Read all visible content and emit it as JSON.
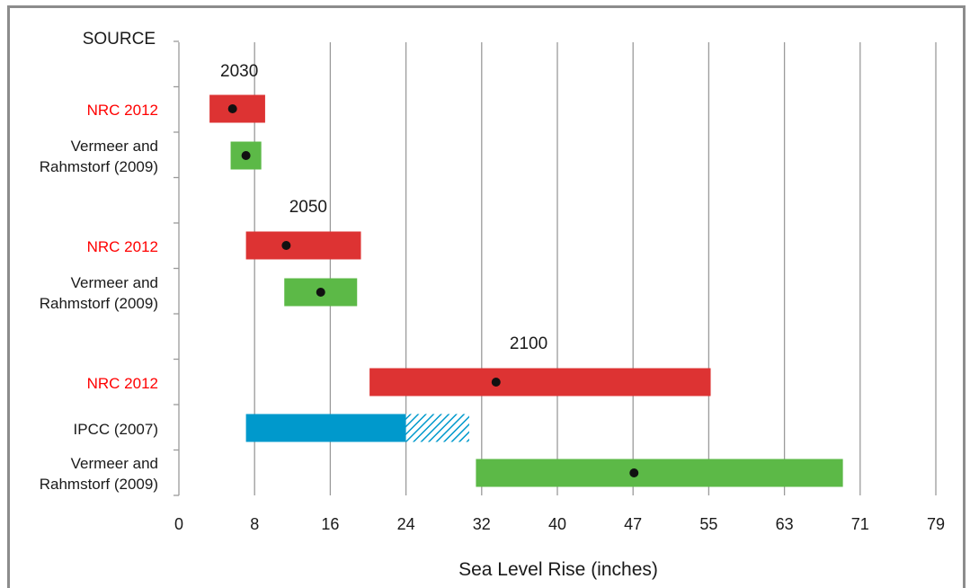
{
  "chart_data": {
    "type": "bar",
    "orientation": "horizontal-range",
    "source_header": "SOURCE",
    "xlabel": "Sea Level Rise (inches)",
    "x_ticks": [
      "0",
      "8",
      "16",
      "24",
      "32",
      "40",
      "47",
      "55",
      "63",
      "71",
      "79"
    ],
    "xlim": [
      0,
      79
    ],
    "grid": "vertical",
    "year_labels": [
      {
        "text": "2030",
        "at_x": 6.3
      },
      {
        "text": "2050",
        "at_x": 13.5
      },
      {
        "text": "2100",
        "at_x": 36.5
      }
    ],
    "rows": [
      {
        "group": "2030",
        "source": "NRC 2012",
        "source_color": "#ff0000",
        "min": 3.2,
        "max": 9.0,
        "central": 5.6,
        "color": "#dd3333"
      },
      {
        "group": "2030",
        "source": "Vermeer and Rahmstorf (2009)",
        "source_color": "#1a1a1a",
        "min": 5.4,
        "max": 8.6,
        "central": 7.0,
        "color": "#5cb947"
      },
      {
        "group": "2050",
        "source": "NRC 2012",
        "source_color": "#ff0000",
        "min": 7.0,
        "max": 19.0,
        "central": 11.2,
        "color": "#dd3333"
      },
      {
        "group": "2050",
        "source": "Vermeer and Rahmstorf (2009)",
        "source_color": "#1a1a1a",
        "min": 11.0,
        "max": 18.6,
        "central": 14.8,
        "color": "#5cb947"
      },
      {
        "group": "2100",
        "source": "NRC 2012",
        "source_color": "#ff0000",
        "min": 19.9,
        "max": 55.5,
        "central": 33.1,
        "color": "#dd3333"
      },
      {
        "group": "2100",
        "source": "IPCC (2007)",
        "source_color": "#1a1a1a",
        "min": 7.0,
        "max": 23.7,
        "extended_max": 30.3,
        "color": "#0099cc"
      },
      {
        "group": "2100",
        "source": "Vermeer and Rahmstorf (2009)",
        "source_color": "#1a1a1a",
        "min": 31.0,
        "max": 69.3,
        "central": 47.5,
        "color": "#5cb947"
      }
    ]
  }
}
